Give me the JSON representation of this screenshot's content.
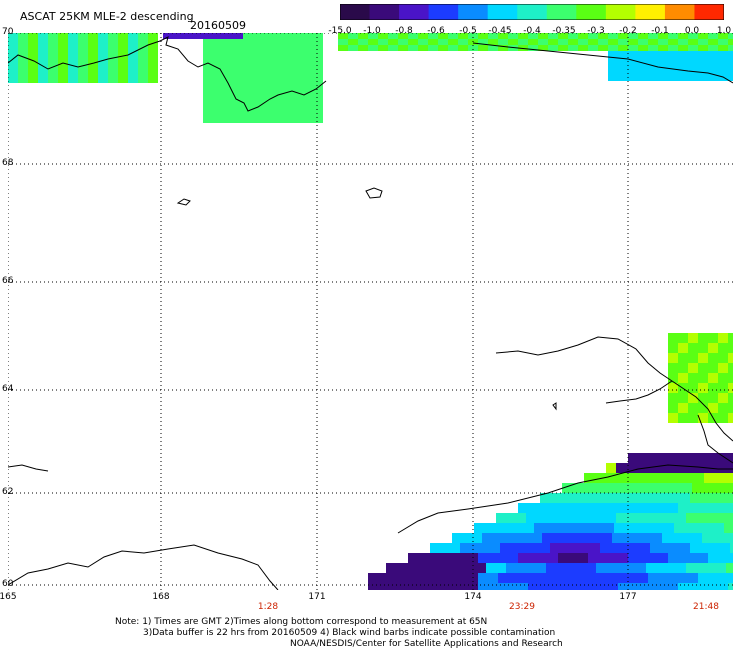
{
  "header": {
    "title": "ASCAT 25KM MLE-2 descending",
    "date": "20160509"
  },
  "colorbar": {
    "labels": [
      "-15.0",
      "-1.0",
      "-0.8",
      "-0.6",
      "-0.5",
      "-0.45",
      "-0.4",
      "-0.35",
      "-0.3",
      "-0.2",
      "-0.1",
      "0.0",
      "1.0"
    ],
    "colors": [
      "#2a0a4a",
      "#3a0a7a",
      "#4a14c8",
      "#1c3cff",
      "#0a8cff",
      "#00d8ff",
      "#1ef0c8",
      "#3cff6e",
      "#5aff14",
      "#b4ff00",
      "#fff000",
      "#ff8c00",
      "#ff2800"
    ]
  },
  "axes": {
    "lat_labels": [
      "70",
      "68",
      "66",
      "64",
      "62",
      "60"
    ],
    "lon_labels": [
      "165",
      "168",
      "171",
      "174",
      "177"
    ],
    "time_labels": [
      "1:28",
      "23:29",
      "21:48"
    ]
  },
  "notes": {
    "line1": "Note: 1) Times are GMT 2)Times along bottom correspond to measurement at 65N",
    "line2": "3)Data buffer is 22 hrs from 20160509 4) Black wind barbs indicate possible contamination",
    "line3": "NOAA/NESDIS/Center for Satellite Applications and Research"
  }
}
